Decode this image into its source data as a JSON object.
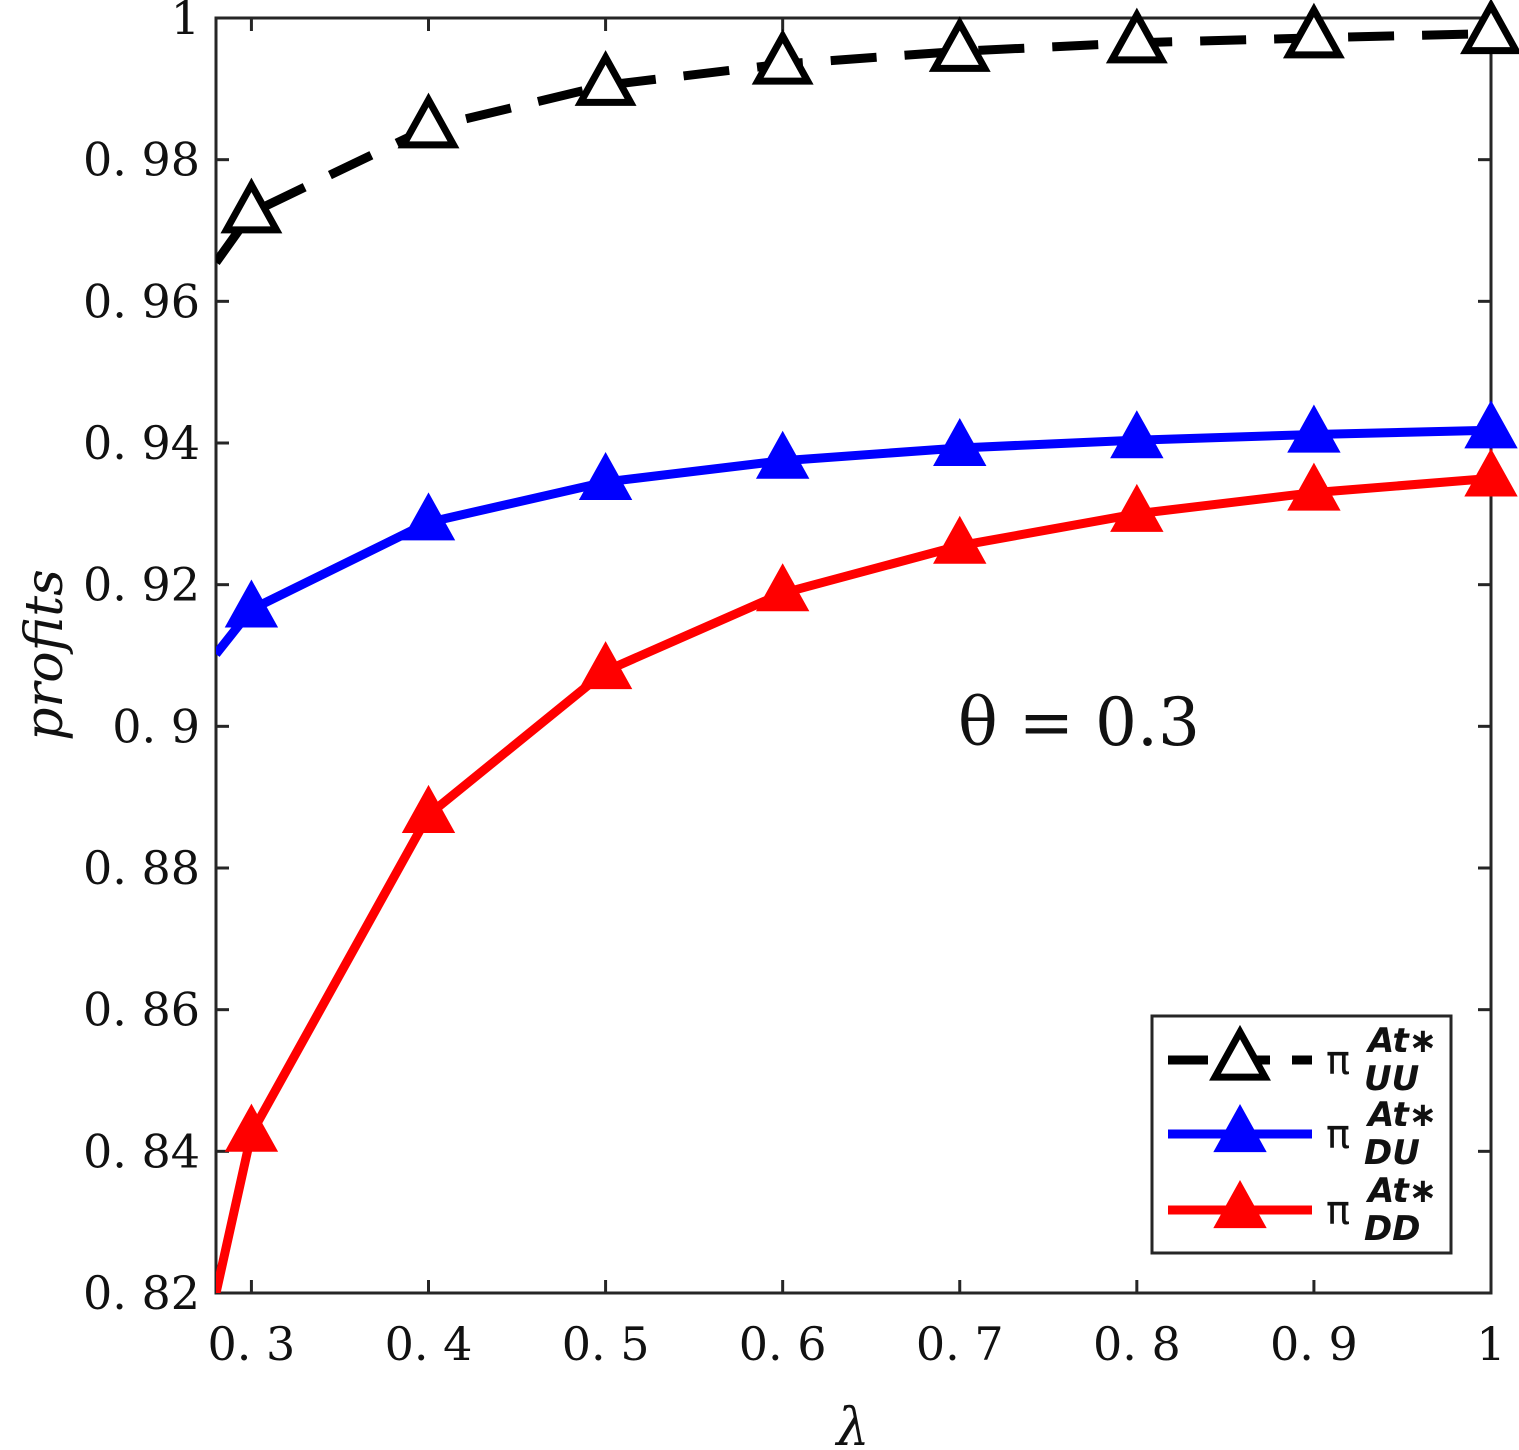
{
  "chart_data": {
    "type": "line",
    "title": "",
    "xlabel": "λ",
    "ylabel": "profits",
    "xlim": [
      0.28,
      1.0
    ],
    "ylim": [
      0.82,
      1.0
    ],
    "xticks": [
      0.3,
      0.4,
      0.5,
      0.6,
      0.7,
      0.8,
      0.9,
      1.0
    ],
    "xtick_labels": [
      "0. 3",
      "0. 4",
      "0. 5",
      "0. 6",
      "0. 7",
      "0. 8",
      "0. 9",
      "1"
    ],
    "yticks": [
      0.82,
      0.84,
      0.86,
      0.88,
      0.9,
      0.92,
      0.94,
      0.96,
      0.98,
      1.0
    ],
    "ytick_labels": [
      "0. 82",
      "0. 84",
      "0. 86",
      "0. 88",
      "0. 9",
      "0. 92",
      "0. 94",
      "0. 96",
      "0. 98",
      "1"
    ],
    "grid": false,
    "annotation": "θ = 0.3",
    "legend": {
      "position": "bottom-right"
    },
    "series": [
      {
        "key": "uu",
        "name_main": "π",
        "name_sup": "At∗",
        "name_sub": "UU",
        "color": "#000000",
        "line_style": "dashed",
        "marker": "triangle-open",
        "line_x": [
          0.28,
          0.3,
          0.4,
          0.5,
          0.6,
          0.7,
          0.8,
          0.9,
          1.0
        ],
        "line_y": [
          0.9655,
          0.9725,
          0.9845,
          0.9905,
          0.9935,
          0.9953,
          0.9965,
          0.9972,
          0.9978
        ],
        "marker_x": [
          0.3,
          0.4,
          0.5,
          0.6,
          0.7,
          0.8,
          0.9,
          1.0
        ],
        "marker_y": [
          0.9725,
          0.9845,
          0.9905,
          0.9935,
          0.9953,
          0.9965,
          0.9972,
          0.9978
        ]
      },
      {
        "key": "du",
        "name_main": "π",
        "name_sup": "At∗",
        "name_sub": "DU",
        "color": "#0000ff",
        "line_style": "solid",
        "marker": "triangle-filled",
        "line_x": [
          0.28,
          0.3,
          0.4,
          0.5,
          0.6,
          0.7,
          0.8,
          0.9,
          1.0
        ],
        "line_y": [
          0.9102,
          0.9165,
          0.9288,
          0.9345,
          0.9375,
          0.9393,
          0.9404,
          0.9412,
          0.9418
        ],
        "marker_x": [
          0.3,
          0.4,
          0.5,
          0.6,
          0.7,
          0.8,
          0.9,
          1.0
        ],
        "marker_y": [
          0.9165,
          0.9288,
          0.9345,
          0.9375,
          0.9393,
          0.9404,
          0.9412,
          0.9418
        ]
      },
      {
        "key": "dd",
        "name_main": "π",
        "name_sup": "At∗",
        "name_sub": "DD",
        "color": "#ff0000",
        "line_style": "solid",
        "marker": "triangle-filled",
        "line_x": [
          0.28,
          0.3,
          0.4,
          0.5,
          0.6,
          0.7,
          0.8,
          0.9,
          1.0
        ],
        "line_y": [
          0.82,
          0.8425,
          0.8875,
          0.9078,
          0.9188,
          0.9255,
          0.93,
          0.933,
          0.935
        ],
        "marker_x": [
          0.3,
          0.4,
          0.5,
          0.6,
          0.7,
          0.8,
          0.9,
          1.0
        ],
        "marker_y": [
          0.8425,
          0.8875,
          0.9078,
          0.9188,
          0.9255,
          0.93,
          0.933,
          0.935
        ]
      }
    ]
  }
}
